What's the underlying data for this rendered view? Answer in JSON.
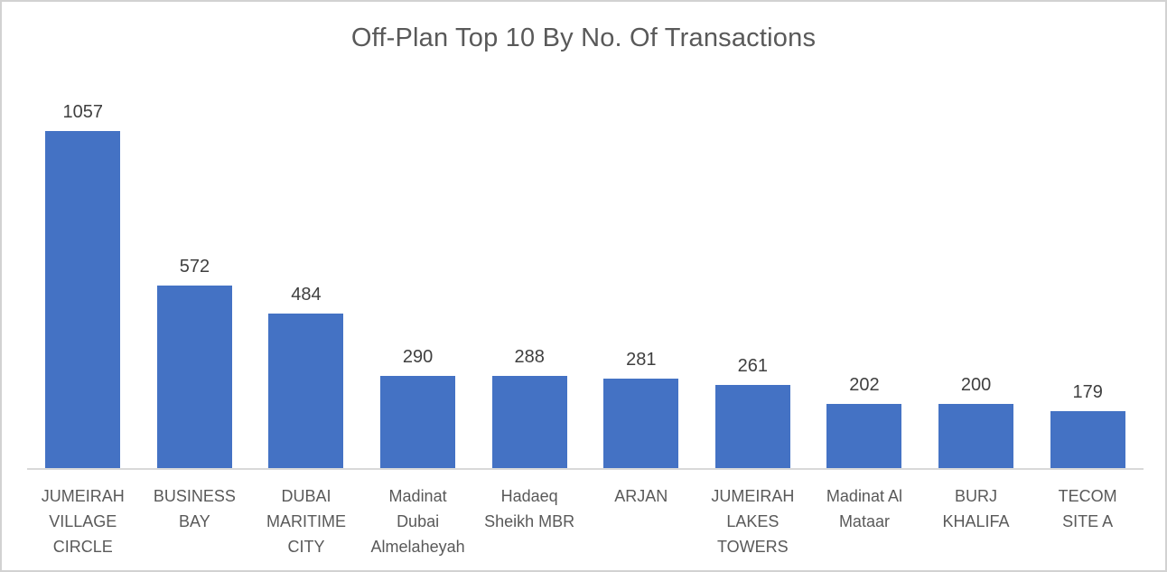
{
  "colors": {
    "bar": "#4472C4",
    "title_text": "#595959",
    "value_text": "#3F3F3F",
    "category_text": "#595959",
    "axis_line": "#D9D9D9",
    "frame_border": "#D2D2D2",
    "background": "#FFFFFF"
  },
  "chart_data": {
    "type": "bar",
    "title": "Off-Plan Top 10 By No. Of Transactions",
    "categories": [
      "JUMEIRAH VILLAGE CIRCLE",
      "BUSINESS BAY",
      "DUBAI MARITIME CITY",
      "Madinat Dubai Almelaheyah",
      "Hadaeq Sheikh MBR",
      "ARJAN",
      "JUMEIRAH LAKES TOWERS",
      "Madinat Al Mataar",
      "BURJ KHALIFA",
      "TECOM SITE A"
    ],
    "values": [
      1057,
      572,
      484,
      290,
      288,
      281,
      261,
      202,
      200,
      179
    ],
    "xlabel": "",
    "ylabel": "",
    "ylim": [
      0,
      1100
    ],
    "data_labels": true,
    "grid": false,
    "legend": "none",
    "y_axis_visible": false,
    "bar_color": "#4472C4"
  }
}
